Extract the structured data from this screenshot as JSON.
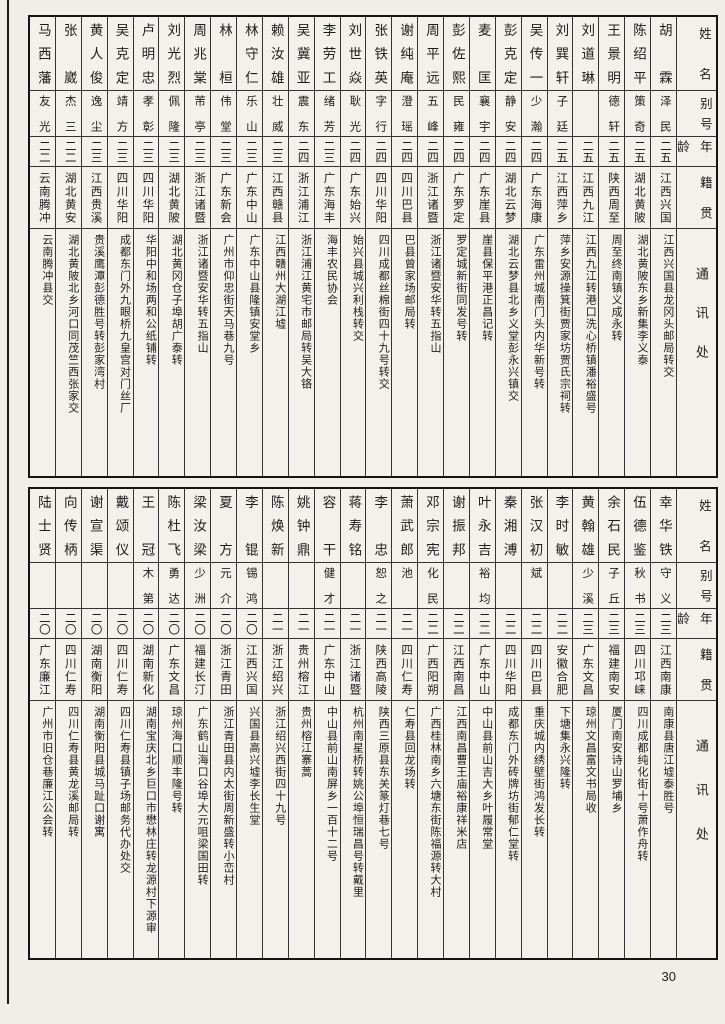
{
  "page_number": "30",
  "header": {
    "name": "姓名",
    "alias": "别号",
    "age": "年龄",
    "native": "籍贯",
    "address": "通讯处"
  },
  "tables": [
    {
      "entries": [
        {
          "name": "马西藩",
          "alias": "友光",
          "age": "二二",
          "native": "云南腾冲",
          "address": "云南腾冲县交"
        },
        {
          "name": "张崴",
          "alias": "杰三",
          "age": "二二",
          "native": "湖北黄安",
          "address": "湖北黄陂北乡河口同茂竺西张家交"
        },
        {
          "name": "黄人俊",
          "alias": "逸尘",
          "age": "二三",
          "native": "江西贵溪",
          "address": "贵溪鹰潭彭德胜号转彭家湾村"
        },
        {
          "name": "吴克定",
          "alias": "靖方",
          "age": "二三",
          "native": "四川华阳",
          "address": "成都东门外九眼桥九皇宫对门丝厂"
        },
        {
          "name": "卢明忠",
          "alias": "孝彰",
          "age": "二三",
          "native": "四川华阳",
          "address": "华阳中和场两和公纸铺转"
        },
        {
          "name": "刘光烈",
          "alias": "佩隆",
          "age": "二三",
          "native": "湖北黄陂",
          "address": "湖北黄冈仓子埠胡广泰转"
        },
        {
          "name": "周兆棠",
          "alias": "芾亭",
          "age": "二三",
          "native": "浙江诸暨",
          "address": "浙江诸暨安华转五指山"
        },
        {
          "name": "林桓",
          "alias": "伟堂",
          "age": "二三",
          "native": "广东新会",
          "address": "广州市仰忠街天马巷九号"
        },
        {
          "name": "林守仁",
          "alias": "乐山",
          "age": "二三",
          "native": "广东中山",
          "address": "广东中山县隆镇安堂乡"
        },
        {
          "name": "赖汝雄",
          "alias": "壮威",
          "age": "二三",
          "native": "江西赣县",
          "address": "江西赣州大湖江墟"
        },
        {
          "name": "吴冀亚",
          "alias": "震东",
          "age": "二四",
          "native": "浙江浦江",
          "address": "浙江浦江黄宅市邮局转吴大铬"
        },
        {
          "name": "李劳工",
          "alias": "绪芳",
          "age": "二三",
          "native": "广东海丰",
          "address": "海丰农民协会"
        },
        {
          "name": "刘世焱",
          "alias": "耿光",
          "age": "二四",
          "native": "广东始兴",
          "address": "始兴县城兴利栈转交"
        },
        {
          "name": "张铁英",
          "alias": "字行",
          "age": "二四",
          "native": "四川华阳",
          "address": "四川成都丝棉街四十九号转交"
        },
        {
          "name": "谢纯庵",
          "alias": "澄瑶",
          "age": "二四",
          "native": "四川巴县",
          "address": "巴县曾家场邮局转"
        },
        {
          "name": "周平远",
          "alias": "五峰",
          "age": "二四",
          "native": "浙江诸暨",
          "address": "浙江诸暨安华转五指山"
        },
        {
          "name": "彭佐熙",
          "alias": "民雍",
          "age": "二四",
          "native": "广东罗定",
          "address": "罗定城新街同发号转"
        },
        {
          "name": "麦匡",
          "alias": "襄宇",
          "age": "二四",
          "native": "广东崖县",
          "address": "崖县保平港正昌记转"
        },
        {
          "name": "彭克定",
          "alias": "静安",
          "age": "二四",
          "native": "湖北云梦",
          "address": "湖北云梦县北乡义堂彭永兴镇交"
        },
        {
          "name": "吴传一",
          "alias": "少瀚",
          "age": "二四",
          "native": "广东海康",
          "address": "广东雷州城南门头内华新号转"
        },
        {
          "name": "刘巽轩",
          "alias": "子廷",
          "age": "二五",
          "native": "江西萍乡",
          "address": "萍乡安源操箕街贾家坊贾氏宗祠转"
        },
        {
          "name": "刘道琳",
          "alias": "",
          "age": "二五",
          "native": "江西九江",
          "address": "江西九江转港口洗心桥镇潘裕盛号"
        },
        {
          "name": "王景明",
          "alias": "德轩",
          "age": "二五",
          "native": "陕西周至",
          "address": "周至终南镇义成永转"
        },
        {
          "name": "陈绍平",
          "alias": "策奇",
          "age": "二五",
          "native": "湖北黄陂",
          "address": "湖北黄陂东乡新集李义泰"
        },
        {
          "name": "胡霖",
          "alias": "泽民",
          "age": "二五",
          "native": "江西兴国",
          "address": "江西兴国县龙冈头邮局转交"
        }
      ]
    },
    {
      "entries": [
        {
          "name": "陆士贤",
          "alias": "",
          "age": "二〇",
          "native": "广东廉江",
          "address": "广州市旧仓巷廉江公会转"
        },
        {
          "name": "向传柄",
          "alias": "",
          "age": "二〇",
          "native": "四川仁寿",
          "address": "四川仁寿县黄龙溪邮局转"
        },
        {
          "name": "谢宣渠",
          "alias": "",
          "age": "二〇",
          "native": "湖南衡阳",
          "address": "湖南衡阳县城马趾口谢寓"
        },
        {
          "name": "戴颂仪",
          "alias": "",
          "age": "二〇",
          "native": "四川仁寿",
          "address": "四川仁寿县镇子场邮务代办处交"
        },
        {
          "name": "王冠",
          "alias": "木第",
          "age": "二〇",
          "native": "湖南新化",
          "address": "湖南宝庆北乡巨口市懋林庄转龙源村下源审"
        },
        {
          "name": "陈杜飞",
          "alias": "勇达",
          "age": "二〇",
          "native": "广东文昌",
          "address": "琼州海口顺丰隆号转"
        },
        {
          "name": "梁汝梁",
          "alias": "少洲",
          "age": "二〇",
          "native": "福建长汀",
          "address": "广东鹤山海口谷埠大元咀梁国田转"
        },
        {
          "name": "夏方",
          "alias": "元介",
          "age": "二〇",
          "native": "浙江青田",
          "address": "浙江青田县内太街周新盛转小峦村"
        },
        {
          "name": "李锟",
          "alias": "锡鸿",
          "age": "二〇",
          "native": "江西兴国",
          "address": "兴国县高兴墟李长生堂"
        },
        {
          "name": "陈焕新",
          "alias": "",
          "age": "二一",
          "native": "浙江绍兴",
          "address": "浙江绍兴西街四十九号"
        },
        {
          "name": "姚钟鼎",
          "alias": "",
          "age": "二一",
          "native": "贵州榕江",
          "address": "贵州榕江寨蒿"
        },
        {
          "name": "容干",
          "alias": "健才",
          "age": "二一",
          "native": "广东中山",
          "address": "中山县前山南屏乡一百十二号"
        },
        {
          "name": "蒋寿铭",
          "alias": "",
          "age": "二一",
          "native": "浙江诸暨",
          "address": "杭州南星桥转姚公埠恒瑞昌号转戴里"
        },
        {
          "name": "李忠",
          "alias": "恕之",
          "age": "二一",
          "native": "陕西高陵",
          "address": "陕西三原县东关篆灯巷七号"
        },
        {
          "name": "萧武郎",
          "alias": "池",
          "age": "二一",
          "native": "四川仁寿",
          "address": "仁寿县回龙场转"
        },
        {
          "name": "邓宗宪",
          "alias": "化民",
          "age": "二二",
          "native": "广西阳朔",
          "address": "广西桂林南乡六塘东街陈福源转大村"
        },
        {
          "name": "谢振邦",
          "alias": "",
          "age": "二二",
          "native": "江西南昌",
          "address": "江西南昌曹王庙裕康祥米店"
        },
        {
          "name": "叶永吉",
          "alias": "裕均",
          "age": "二二",
          "native": "广东中山",
          "address": "中山县前山吉大乡叶履常堂"
        },
        {
          "name": "秦湘溥",
          "alias": "",
          "age": "二二",
          "native": "四川华阳",
          "address": "成都东门外砖牌坊街郁仁堂转"
        },
        {
          "name": "张汉初",
          "alias": "斌",
          "age": "二二",
          "native": "四川巴县",
          "address": "重庆城内绣壁街鸿发长转"
        },
        {
          "name": "李时敏",
          "alias": "",
          "age": "二二",
          "native": "安徽合肥",
          "address": "下塘集永兴隆转"
        },
        {
          "name": "黄翰雄",
          "alias": "少溪",
          "age": "二三",
          "native": "广东文昌",
          "address": "琼州文昌富文书局收"
        },
        {
          "name": "余石民",
          "alias": "子丘",
          "age": "二三",
          "native": "福建南安",
          "address": "厦门南安诗山罗埔乡"
        },
        {
          "name": "伍德鉴",
          "alias": "秋书",
          "age": "二三",
          "native": "四川邛崃",
          "address": "四川成都纯化街十号萧作舟转"
        },
        {
          "name": "幸华铁",
          "alias": "守义",
          "age": "二三",
          "native": "江西南康",
          "address": "南康县唐江墟泰胜号"
        }
      ]
    }
  ]
}
